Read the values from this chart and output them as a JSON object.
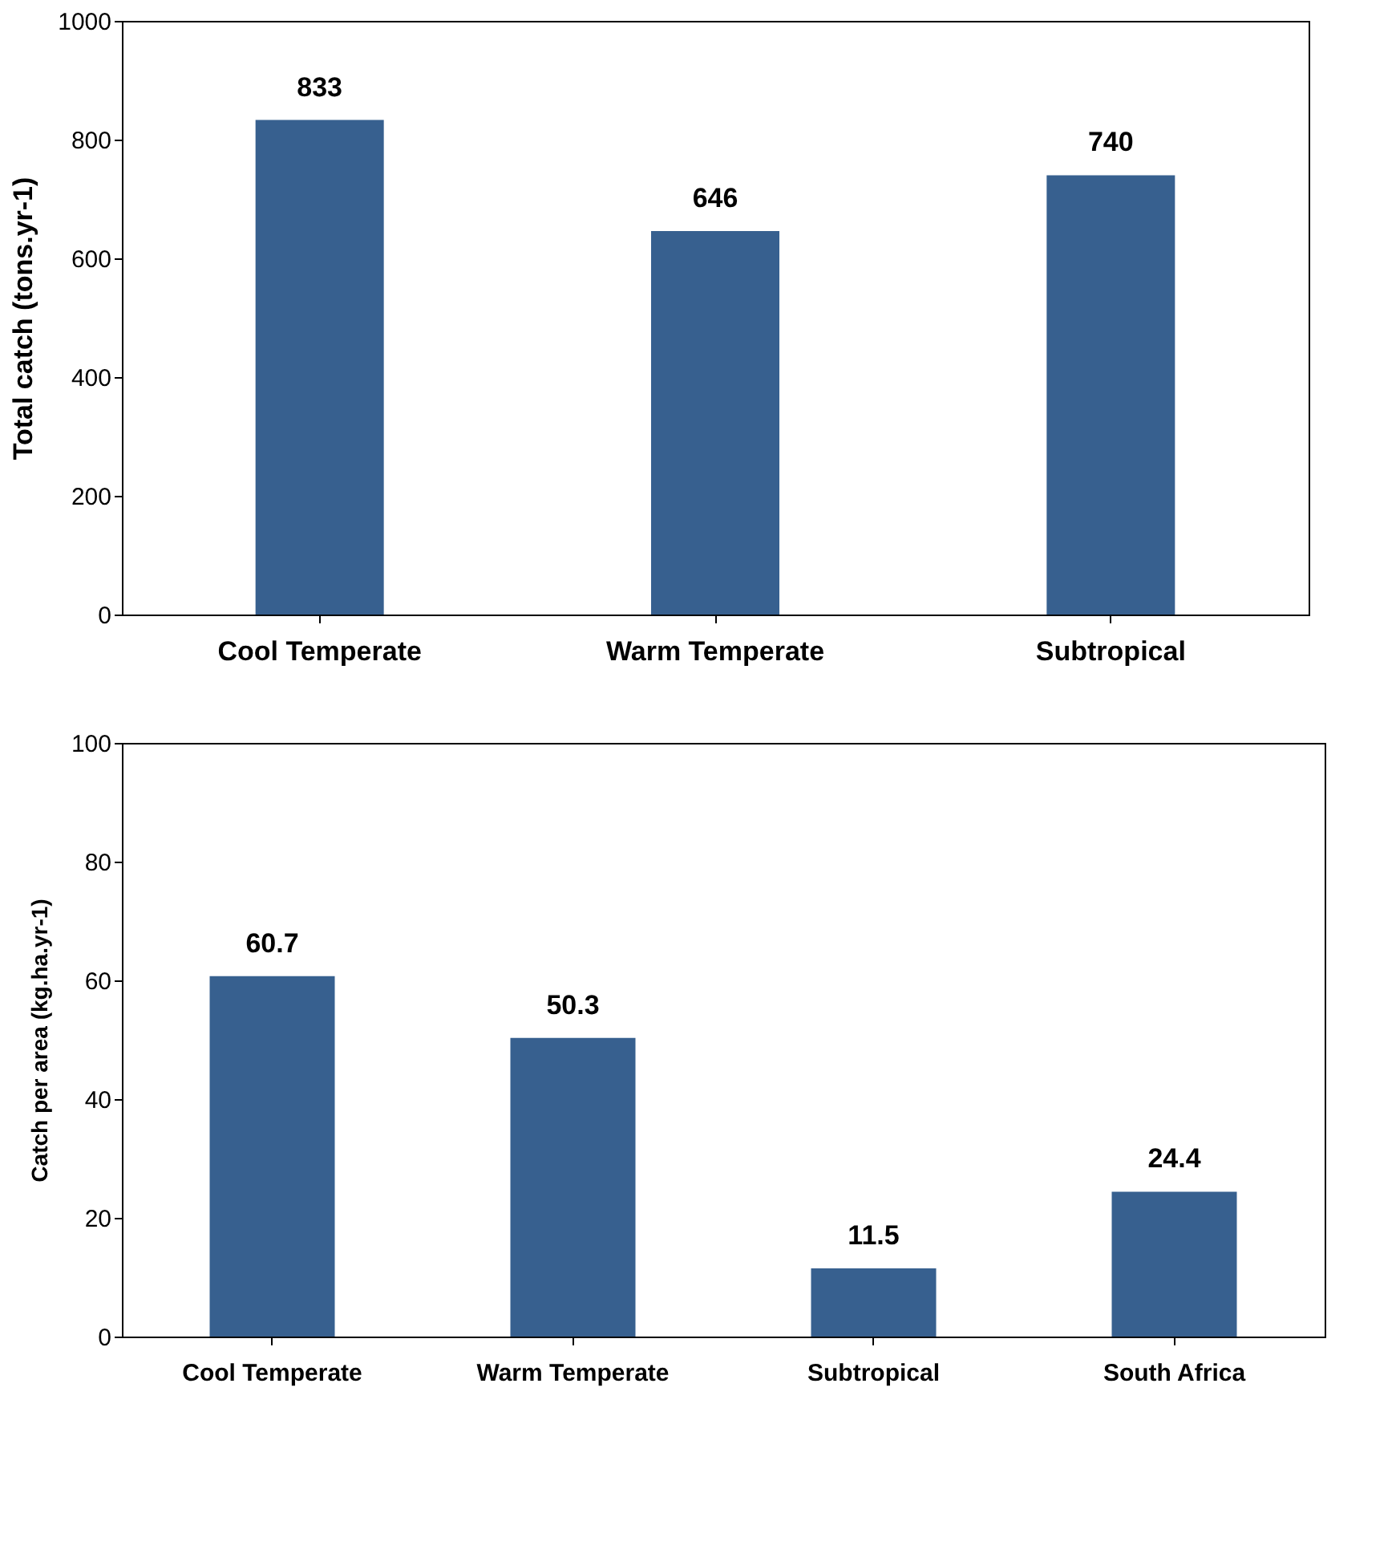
{
  "chart_data": [
    {
      "type": "bar",
      "ylabel": "Total catch  (tons.yr-1)",
      "categories": [
        "Cool Temperate",
        "Warm Temperate",
        "Subtropical"
      ],
      "values": [
        833,
        646,
        740
      ],
      "color": "#37608f",
      "ylim": [
        0,
        1000
      ],
      "yticks": [
        0,
        200,
        400,
        600,
        800,
        1000
      ],
      "grid": false,
      "data_labels": true
    },
    {
      "type": "bar",
      "ylabel": "Catch per area (kg.ha.yr-1)",
      "categories": [
        "Cool Temperate",
        "Warm Temperate",
        "Subtropical",
        "South Africa"
      ],
      "values": [
        60.7,
        50.3,
        11.5,
        24.4
      ],
      "color": "#37608f",
      "ylim": [
        0,
        100
      ],
      "yticks": [
        0,
        20,
        40,
        60,
        80,
        100
      ],
      "grid": false,
      "data_labels": true
    }
  ]
}
